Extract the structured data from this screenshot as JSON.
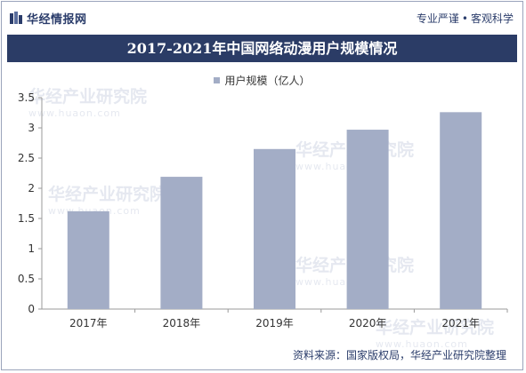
{
  "header": {
    "brand": "华经情报网",
    "slogan_left": "专业严谨",
    "slogan_sep": "•",
    "slogan_right": "客观科学"
  },
  "watermark": {
    "text": "华经产业研究院",
    "url": "www.huaon.com"
  },
  "footer": {
    "source": "资料来源：国家版权局，华经产业研究院整理"
  },
  "colors": {
    "bar": "#a3adc6",
    "title_band": "#2b3c66",
    "brand": "#2b3d6b"
  },
  "chart_data": {
    "type": "bar",
    "title": "2017-2021年中国网络动漫用户规模情况",
    "categories": [
      "2017年",
      "2018年",
      "2019年",
      "2020年",
      "2021年"
    ],
    "series": [
      {
        "name": "用户规模（亿人）",
        "values": [
          1.62,
          2.19,
          2.65,
          2.97,
          3.26
        ]
      }
    ],
    "ylim": [
      0,
      3.5
    ],
    "yticks": [
      "0",
      "0.5",
      "1",
      "1.5",
      "2",
      "2.5",
      "3",
      "3.5"
    ],
    "grid": false,
    "legend": "top-center"
  }
}
